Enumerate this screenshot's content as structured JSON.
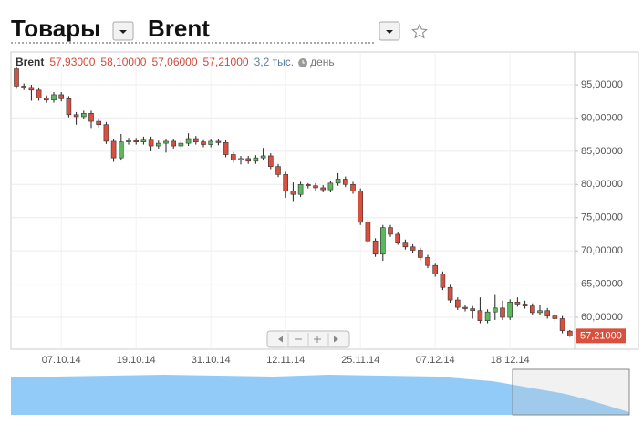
{
  "header": {
    "section": "Товары",
    "instrument": "Brent"
  },
  "chart_data": {
    "type": "candlestick",
    "name": "Brent",
    "ohlc_labels": [
      "57,93000",
      "58,10000",
      "57,06000",
      "57,21000"
    ],
    "volume_label": "3,2 тыс.",
    "period": "день",
    "colors": {
      "up": "#5cb85c",
      "down": "#d9503f"
    },
    "grid": true,
    "categories": [
      null,
      null,
      null,
      null,
      null,
      null,
      "07.10.14",
      null,
      null,
      null,
      null,
      null,
      null,
      null,
      null,
      null,
      "19.10.14",
      null,
      null,
      null,
      null,
      null,
      null,
      null,
      null,
      null,
      "31.10.14",
      null,
      null,
      null,
      null,
      null,
      null,
      null,
      null,
      null,
      "12.11.14",
      null,
      null,
      null,
      null,
      null,
      null,
      null,
      null,
      null,
      "25.11.14",
      null,
      null,
      null,
      null,
      null,
      null,
      null,
      null,
      null,
      "07.12.14",
      null,
      null,
      null,
      null,
      null,
      null,
      null,
      null,
      null,
      "18.12.14",
      null,
      null,
      null,
      null,
      null,
      null,
      null,
      null
    ],
    "open": [
      97.4,
      94.8,
      94.6,
      94.2,
      93.0,
      92.7,
      93.5,
      92.9,
      90.5,
      90.2,
      90.7,
      89.5,
      89.0,
      86.5,
      84.0,
      86.4,
      86.6,
      86.4,
      86.8,
      85.8,
      86.2,
      86.5,
      85.8,
      86.2,
      86.9,
      86.4,
      86.0,
      86.5,
      86.3,
      84.5,
      83.7,
      83.9,
      83.5,
      84.0,
      84.3,
      82.7,
      81.5,
      79.0,
      78.5,
      80.0,
      79.8,
      79.5,
      79.2,
      80.2,
      80.8,
      80.0,
      79.0,
      74.3,
      71.5,
      69.5,
      73.5,
      72.5,
      71.3,
      70.6,
      70.1,
      69.0,
      67.8,
      66.5,
      64.5,
      62.6,
      61.5,
      61.3,
      61.0,
      59.5,
      60.8,
      61.4,
      60.0,
      62.3,
      62.0,
      61.7,
      60.7,
      61.0,
      60.2,
      59.8,
      57.93
    ],
    "high": [
      97.8,
      95.2,
      95.0,
      94.6,
      93.4,
      93.9,
      93.9,
      93.3,
      90.9,
      91.1,
      91.1,
      89.9,
      89.4,
      86.9,
      87.6,
      87.0,
      87.0,
      87.2,
      87.2,
      86.6,
      86.9,
      86.9,
      86.6,
      87.7,
      87.3,
      86.8,
      86.9,
      86.9,
      86.7,
      84.9,
      84.3,
      84.3,
      84.4,
      85.5,
      84.7,
      83.1,
      81.9,
      80.3,
      80.4,
      80.2,
      80.2,
      79.9,
      80.6,
      81.7,
      81.2,
      80.4,
      79.4,
      74.7,
      71.9,
      73.9,
      73.9,
      72.9,
      71.7,
      71.0,
      70.5,
      69.4,
      68.2,
      66.9,
      64.9,
      63.0,
      61.9,
      61.7,
      63.0,
      61.2,
      63.5,
      62.5,
      62.7,
      63.0,
      62.5,
      62.1,
      61.8,
      61.4,
      60.6,
      60.2,
      58.1
    ],
    "low": [
      94.4,
      94.2,
      92.6,
      92.6,
      92.3,
      92.3,
      92.5,
      90.1,
      89.0,
      89.8,
      88.5,
      88.6,
      86.1,
      83.4,
      83.6,
      86.0,
      86.0,
      86.0,
      85.0,
      85.4,
      84.8,
      85.4,
      85.4,
      85.8,
      86.0,
      85.6,
      85.6,
      85.9,
      84.1,
      83.3,
      83.0,
      83.1,
      83.1,
      83.6,
      82.3,
      81.1,
      78.0,
      77.5,
      78.1,
      79.4,
      79.1,
      78.8,
      78.8,
      79.8,
      79.6,
      78.6,
      73.9,
      71.1,
      69.1,
      68.5,
      72.1,
      70.9,
      70.2,
      69.7,
      68.6,
      67.4,
      66.1,
      64.1,
      62.2,
      61.1,
      60.9,
      59.8,
      59.1,
      59.1,
      59.6,
      59.6,
      59.6,
      61.6,
      61.3,
      60.3,
      60.3,
      59.8,
      59.4,
      57.6,
      57.06
    ],
    "close": [
      94.8,
      94.6,
      94.2,
      93.0,
      92.7,
      93.5,
      92.9,
      90.5,
      90.2,
      90.7,
      89.5,
      89.0,
      86.5,
      84.0,
      86.4,
      86.6,
      86.4,
      86.8,
      85.8,
      86.2,
      86.5,
      85.8,
      86.2,
      86.9,
      86.4,
      86.0,
      86.5,
      86.3,
      84.5,
      83.7,
      83.9,
      83.5,
      84.0,
      84.3,
      82.7,
      81.5,
      79.0,
      78.5,
      80.0,
      79.8,
      79.5,
      79.2,
      80.2,
      80.8,
      80.0,
      79.0,
      74.3,
      71.5,
      69.5,
      73.5,
      72.5,
      71.3,
      70.6,
      70.1,
      69.0,
      67.8,
      66.5,
      64.5,
      62.6,
      61.5,
      61.3,
      61.0,
      59.5,
      60.8,
      61.4,
      60.0,
      62.3,
      62.0,
      61.7,
      60.7,
      61.0,
      60.2,
      59.8,
      58.0,
      57.21
    ],
    "ylim": [
      55.2,
      99.94
    ],
    "yticks": [
      {
        "value": 60,
        "label": "60,00000"
      },
      {
        "value": 65,
        "label": "65,00000"
      },
      {
        "value": 70,
        "label": "70,00000"
      },
      {
        "value": 75,
        "label": "75,00000"
      },
      {
        "value": 80,
        "label": "80,00000"
      },
      {
        "value": 85,
        "label": "85,00000"
      },
      {
        "value": 90,
        "label": "90,00000"
      },
      {
        "value": 95,
        "label": "95,00000"
      }
    ],
    "last_price": {
      "value": 57.21,
      "label": "57,21000"
    }
  }
}
